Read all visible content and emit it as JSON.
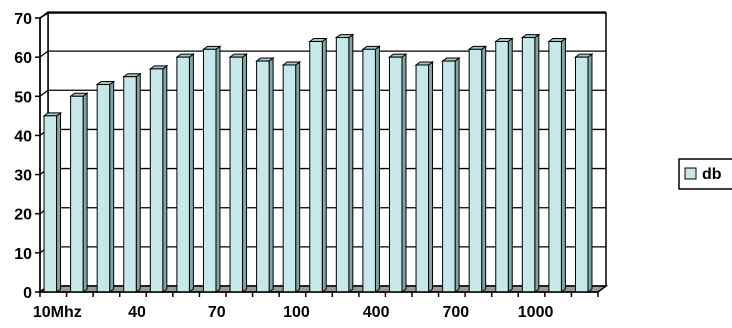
{
  "chart_data": {
    "type": "bar",
    "title": "",
    "xlabel": "",
    "ylabel": "",
    "ylim": [
      0,
      70
    ],
    "y_ticks": [
      0,
      10,
      20,
      30,
      40,
      50,
      60,
      70
    ],
    "grid": true,
    "legend_position": "right",
    "categories": [
      "10Mhz",
      "",
      "",
      "40",
      "",
      "",
      "70",
      "",
      "",
      "100",
      "",
      "",
      "400",
      "",
      "",
      "700",
      "",
      "",
      "1000",
      "",
      ""
    ],
    "x_tick_labels": [
      "10Mhz",
      "40",
      "70",
      "100",
      "400",
      "700",
      "1000"
    ],
    "series": [
      {
        "name": "db",
        "color": "#c7e8e8",
        "values": [
          45,
          50,
          53,
          55,
          57,
          60,
          62,
          60,
          59,
          58,
          64,
          65,
          62,
          60,
          58,
          59,
          62,
          64,
          65,
          64,
          60
        ]
      }
    ]
  }
}
